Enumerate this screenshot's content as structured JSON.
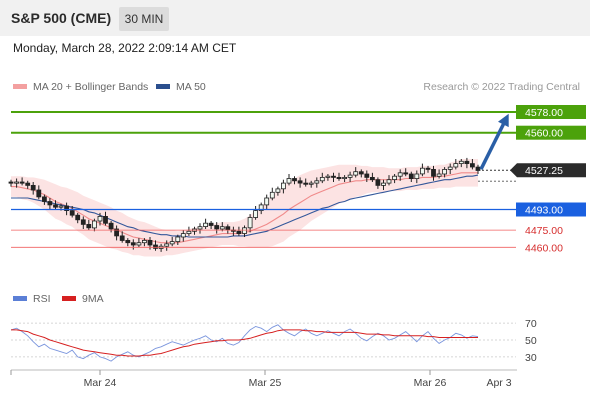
{
  "header": {
    "title": "S&P 500 (CME)",
    "timeframe": "30 MIN"
  },
  "datetime": "Monday, March 28, 2022 2:09:14 AM CET",
  "legend": {
    "ma20_bb": "MA 20 + Bollinger Bands",
    "ma50": "MA 50",
    "credit": "Research © 2022 Trading Central"
  },
  "rsi_legend": {
    "rsi": "RSI",
    "ma9": "9MA"
  },
  "colors": {
    "up": "#f0f8f0",
    "green_level": "#4ca20b",
    "blue_level": "#1a60e0",
    "red_level": "#d62d2d",
    "arrow": "#2a5fa6"
  },
  "chart_data": [
    {
      "type": "candlestick",
      "ylim": [
        4428,
        4592
      ],
      "x_ticks": [
        "Mar 24",
        "Mar 25",
        "Mar 26",
        "Apr 3"
      ],
      "current_price": 4527.25,
      "resistance_levels": [
        4578.0,
        4560.0
      ],
      "support_levels": [
        4493.0,
        4475.0,
        4460.0
      ],
      "target_arrow": 4578.0,
      "close_series": [
        4516,
        4517,
        4516,
        4514,
        4510,
        4504,
        4500,
        4497,
        4495,
        4496,
        4492,
        4488,
        4484,
        4480,
        4477,
        4483,
        4487,
        4481,
        4476,
        4470,
        4466,
        4464,
        4462,
        4464,
        4466,
        4462,
        4459,
        4461,
        4463,
        4465,
        4469,
        4472,
        4474,
        4476,
        4478,
        4481,
        4479,
        4476,
        4478,
        4475,
        4474,
        4472,
        4477,
        4486,
        4492,
        4497,
        4503,
        4508,
        4511,
        4516,
        4520,
        4518,
        4516,
        4515,
        4516,
        4518,
        4521,
        4522,
        4521,
        4520,
        4521,
        4523,
        4526,
        4524,
        4521,
        4519,
        4514,
        4516,
        4519,
        4522,
        4525,
        4524,
        4520,
        4524,
        4529,
        4528,
        4522,
        4524,
        4528,
        4530,
        4533,
        4535,
        4533,
        4530,
        4527
      ],
      "ma20_series": [
        4513,
        4513,
        4512,
        4511,
        4510,
        4508,
        4506,
        4503,
        4500,
        4498,
        4496,
        4494,
        4491,
        4488,
        4485,
        4483,
        4481,
        4479,
        4477,
        4475,
        4473,
        4471,
        4469,
        4468,
        4467,
        4466,
        4465,
        4464,
        4464,
        4464,
        4464,
        4465,
        4466,
        4467,
        4468,
        4469,
        4470,
        4471,
        4472,
        4472,
        4472,
        4472,
        4473,
        4474,
        4476,
        4478,
        4480,
        4483,
        4486,
        4489,
        4493,
        4496,
        4499,
        4502,
        4505,
        4507,
        4509,
        4511,
        4513,
        4515,
        4516,
        4517,
        4518,
        4518,
        4519,
        4519,
        4519,
        4519,
        4519,
        4519,
        4519,
        4520,
        4520,
        4520,
        4521,
        4521,
        4521,
        4522,
        4522,
        4523,
        4524,
        4525,
        4525,
        4525,
        4525
      ],
      "ma50_series": [
        4503,
        4503,
        4503,
        4503,
        4502,
        4501,
        4500,
        4499,
        4498,
        4497,
        4496,
        4495,
        4494,
        4493,
        4491,
        4490,
        4488,
        4486,
        4484,
        4482,
        4480,
        4478,
        4477,
        4475,
        4474,
        4473,
        4472,
        4471,
        4471,
        4470,
        4470,
        4470,
        4469,
        4469,
        4469,
        4469,
        4469,
        4469,
        4469,
        4469,
        4470,
        4470,
        4470,
        4471,
        4472,
        4473,
        4474,
        4476,
        4478,
        4480,
        4482,
        4484,
        4486,
        4488,
        4490,
        4492,
        4494,
        4495,
        4497,
        4499,
        4500,
        4502,
        4503,
        4504,
        4505,
        4506,
        4507,
        4508,
        4509,
        4510,
        4511,
        4512,
        4513,
        4514,
        4515,
        4516,
        4517,
        4518,
        4519,
        4519,
        4520,
        4521,
        4522,
        4522,
        4523
      ],
      "bb_halfwidth": [
        9,
        9,
        10,
        10,
        11,
        12,
        13,
        14,
        15,
        15,
        16,
        16,
        17,
        17,
        18,
        18,
        18,
        18,
        18,
        17,
        17,
        16,
        16,
        15,
        15,
        14,
        13,
        12,
        11,
        11,
        10,
        10,
        10,
        10,
        10,
        10,
        10,
        10,
        10,
        10,
        10,
        11,
        12,
        14,
        16,
        18,
        20,
        22,
        23,
        24,
        24,
        24,
        24,
        23,
        22,
        21,
        20,
        19,
        18,
        17,
        16,
        15,
        14,
        13,
        12,
        11,
        11,
        11,
        10,
        10,
        10,
        10,
        10,
        10,
        10,
        10,
        10,
        10,
        10,
        11,
        11,
        12,
        12,
        12,
        12
      ]
    },
    {
      "type": "line",
      "title": "RSI",
      "y_ticks": [
        70,
        50,
        30
      ],
      "ylim": [
        18,
        82
      ],
      "rsi_series": [
        62,
        64,
        60,
        55,
        48,
        42,
        45,
        40,
        38,
        36,
        34,
        38,
        30,
        28,
        32,
        35,
        30,
        28,
        25,
        30,
        33,
        36,
        32,
        30,
        33,
        36,
        40,
        42,
        45,
        48,
        46,
        44,
        47,
        50,
        52,
        55,
        50,
        48,
        52,
        46,
        44,
        47,
        55,
        62,
        66,
        64,
        60,
        65,
        68,
        62,
        58,
        55,
        60,
        63,
        58,
        55,
        58,
        61,
        58,
        55,
        60,
        63,
        58,
        52,
        49,
        54,
        58,
        55,
        50,
        52,
        56,
        60,
        54,
        48,
        55,
        60,
        52,
        46,
        50,
        53,
        58,
        56,
        52,
        55,
        54
      ],
      "ma9_series": [
        62,
        62,
        61,
        60,
        57,
        55,
        53,
        50,
        48,
        46,
        44,
        42,
        40,
        38,
        37,
        36,
        35,
        34,
        33,
        32,
        32,
        31,
        31,
        31,
        32,
        32,
        33,
        34,
        36,
        38,
        40,
        42,
        43,
        45,
        46,
        47,
        48,
        49,
        49,
        50,
        50,
        50,
        51,
        52,
        54,
        56,
        58,
        59,
        61,
        62,
        62,
        62,
        62,
        61,
        61,
        60,
        60,
        59,
        59,
        59,
        59,
        59,
        59,
        58,
        57,
        57,
        57,
        56,
        56,
        55,
        55,
        55,
        55,
        55,
        55,
        54,
        54,
        53,
        53,
        53,
        53,
        53,
        53,
        53,
        53
      ]
    }
  ]
}
